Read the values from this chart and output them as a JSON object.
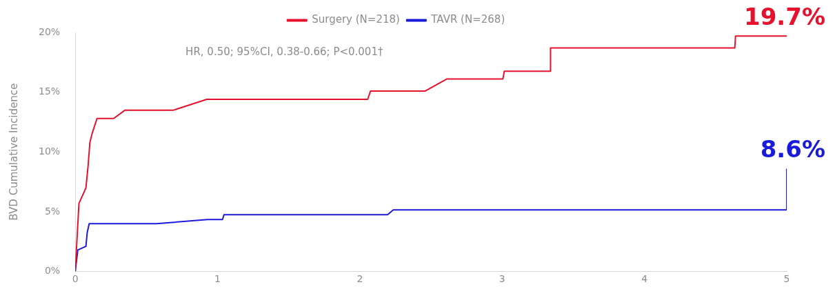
{
  "chart_data": {
    "type": "line",
    "ylabel": "BVD Cumulative Incidence",
    "xlim": [
      0,
      5
    ],
    "xticks": [
      0,
      1,
      2,
      3,
      4,
      5
    ],
    "ylim": [
      0,
      20
    ],
    "yticks": [
      {
        "value": 0,
        "label": "0%"
      },
      {
        "value": 5,
        "label": "5%"
      },
      {
        "value": 10,
        "label": "10%"
      },
      {
        "value": 15,
        "label": "15%"
      },
      {
        "value": 20,
        "label": "20%"
      }
    ],
    "grid": false,
    "legend": "top",
    "marker": "none",
    "line_style": "solid",
    "series": [
      {
        "name": "Surgery (N=218)",
        "color": "#e8112d",
        "x": [
          0,
          0.026,
          0.075,
          0.09,
          0.103,
          0.12,
          0.153,
          0.27,
          0.35,
          0.69,
          0.924,
          2.055,
          2.075,
          2.46,
          2.61,
          3.005,
          3.015,
          3.34,
          3.34,
          4.635,
          4.64,
          5
        ],
        "values": [
          0,
          5.7,
          7.0,
          8.8,
          10.8,
          11.6,
          12.8,
          12.8,
          13.5,
          13.5,
          14.4,
          14.4,
          15.1,
          15.1,
          16.1,
          16.1,
          16.75,
          16.75,
          18.7,
          18.7,
          19.7,
          19.7
        ]
      },
      {
        "name": "TAVR (N=268)",
        "color": "#1a1adb",
        "x": [
          0,
          0.018,
          0.075,
          0.084,
          0.098,
          0.57,
          0.93,
          1.035,
          1.045,
          2.195,
          2.235,
          5,
          5
        ],
        "values": [
          0,
          1.8,
          2.1,
          3.25,
          4.0,
          4.0,
          4.35,
          4.35,
          4.75,
          4.75,
          5.15,
          5.15,
          8.6
        ]
      }
    ],
    "annotations": [
      "HR, 0.50; 95%CI, 0.38-0.66; P<0.001†",
      {
        "text": "19.7%",
        "x": 5,
        "y": 19.7
      },
      {
        "text": "8.6%",
        "x": 5,
        "y": 8.6
      }
    ]
  }
}
